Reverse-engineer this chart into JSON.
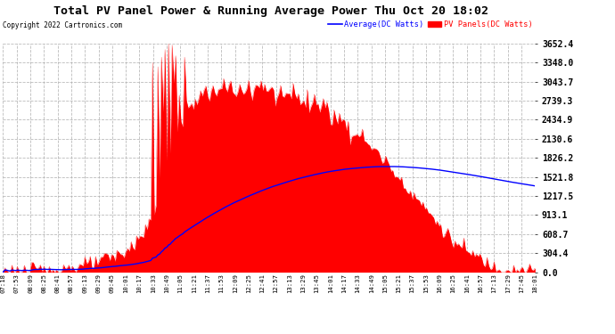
{
  "title": "Total PV Panel Power & Running Average Power Thu Oct 20 18:02",
  "copyright": "Copyright 2022 Cartronics.com",
  "legend_average": "Average(DC Watts)",
  "legend_pv": "PV Panels(DC Watts)",
  "ylabel_values": [
    0.0,
    304.4,
    608.7,
    913.1,
    1217.5,
    1521.8,
    1826.2,
    2130.6,
    2434.9,
    2739.3,
    3043.7,
    3348.0,
    3652.4
  ],
  "ymax": 3652.4,
  "ymin": 0.0,
  "background_color": "#ffffff",
  "plot_bg_color": "#ffffff",
  "grid_color": "#aaaaaa",
  "pv_color": "#ff0000",
  "avg_color": "#0000ff",
  "title_color": "#000000",
  "copyright_color": "#000000",
  "x_tick_labels": [
    "07:18",
    "07:53",
    "08:09",
    "08:25",
    "08:41",
    "08:57",
    "09:13",
    "09:29",
    "09:45",
    "10:01",
    "10:17",
    "10:33",
    "10:49",
    "11:05",
    "11:21",
    "11:37",
    "11:53",
    "12:09",
    "12:25",
    "12:41",
    "12:57",
    "13:13",
    "13:29",
    "13:45",
    "14:01",
    "14:17",
    "14:33",
    "14:49",
    "15:05",
    "15:21",
    "15:37",
    "15:53",
    "16:09",
    "16:25",
    "16:41",
    "16:57",
    "17:13",
    "17:29",
    "17:45",
    "18:01"
  ],
  "num_points": 300
}
